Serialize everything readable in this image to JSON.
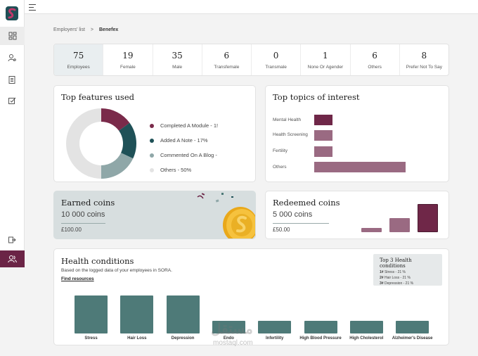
{
  "breadcrumb": {
    "parent": "Employers' list",
    "separator": ">",
    "current": "Benefex"
  },
  "stats": [
    {
      "value": "75",
      "label": "Employees"
    },
    {
      "value": "19",
      "label": "Female"
    },
    {
      "value": "35",
      "label": "Male"
    },
    {
      "value": "6",
      "label": "Transfemale"
    },
    {
      "value": "0",
      "label": "Transmale"
    },
    {
      "value": "1",
      "label": "None Or Agender"
    },
    {
      "value": "6",
      "label": "Others"
    },
    {
      "value": "8",
      "label": "Prefer Not To Say"
    }
  ],
  "features": {
    "title": "Top features used",
    "legend": [
      {
        "label": "Completed A Module - 1!",
        "color": "#7a2a4a"
      },
      {
        "label": "Added A Note - 17%",
        "color": "#1f5157"
      },
      {
        "label": "Commented On A Blog -",
        "color": "#8fa7a8"
      },
      {
        "label": "Others - 50%",
        "color": "#e3e3e3"
      }
    ]
  },
  "topics": {
    "title": "Top topics of interest",
    "items": [
      {
        "label": "Mental Health",
        "color": "#6f2748"
      },
      {
        "label": "Health Screening",
        "color": "#9a6a82"
      },
      {
        "label": "Fertility",
        "color": "#9a6a82"
      },
      {
        "label": "Others",
        "color": "#9a6a82"
      }
    ]
  },
  "earned": {
    "title": "Earned coins",
    "coins": "10 000 coins",
    "money": "£100.00"
  },
  "redeemed": {
    "title": "Redeemed coins",
    "coins": "5 000 coins",
    "money": "£50.00"
  },
  "health": {
    "title": "Health conditions",
    "subtitle": "Based on the logged data of your employees in SORA.",
    "link": "Find resources",
    "top3": {
      "title": "Top 3 Health conditions",
      "rows": [
        {
          "rank": "1#",
          "text": "Stress - 21 %"
        },
        {
          "rank": "2#",
          "text": "Hair Loss - 21 %"
        },
        {
          "rank": "3#",
          "text": "Depression - 21 %"
        }
      ]
    },
    "bars": [
      {
        "label": "Stress"
      },
      {
        "label": "Hair Loss"
      },
      {
        "label": "Depression"
      },
      {
        "label": "Endo"
      },
      {
        "label": "Infertility"
      },
      {
        "label": "High Blood Pressure"
      },
      {
        "label": "High Cholesterol"
      },
      {
        "label": "Alzheimer's Disease"
      }
    ]
  },
  "chart_data": [
    {
      "type": "pie",
      "categories": [
        "Completed A Module",
        "Added A Note",
        "Commented On A Blog",
        "Others"
      ],
      "values": [
        15,
        17,
        18,
        50
      ]
    },
    {
      "type": "bar",
      "categories": [
        "Mental Health",
        "Health Screening",
        "Fertility",
        "Others"
      ],
      "values": [
        20,
        20,
        20,
        100
      ]
    },
    {
      "type": "bar",
      "categories": [
        "",
        "",
        ""
      ],
      "values": [
        15,
        50,
        100
      ]
    },
    {
      "type": "bar",
      "categories": [
        "Stress",
        "Hair Loss",
        "Depression",
        "Endo",
        "Infertility",
        "High Blood Pressure",
        "High Cholesterol",
        "Alzheimer's Disease"
      ],
      "values": [
        21,
        21,
        21,
        7,
        7,
        7,
        7,
        7
      ]
    }
  ],
  "watermark": {
    "arabic": "مستقل",
    "latin": "mostaql.com"
  }
}
